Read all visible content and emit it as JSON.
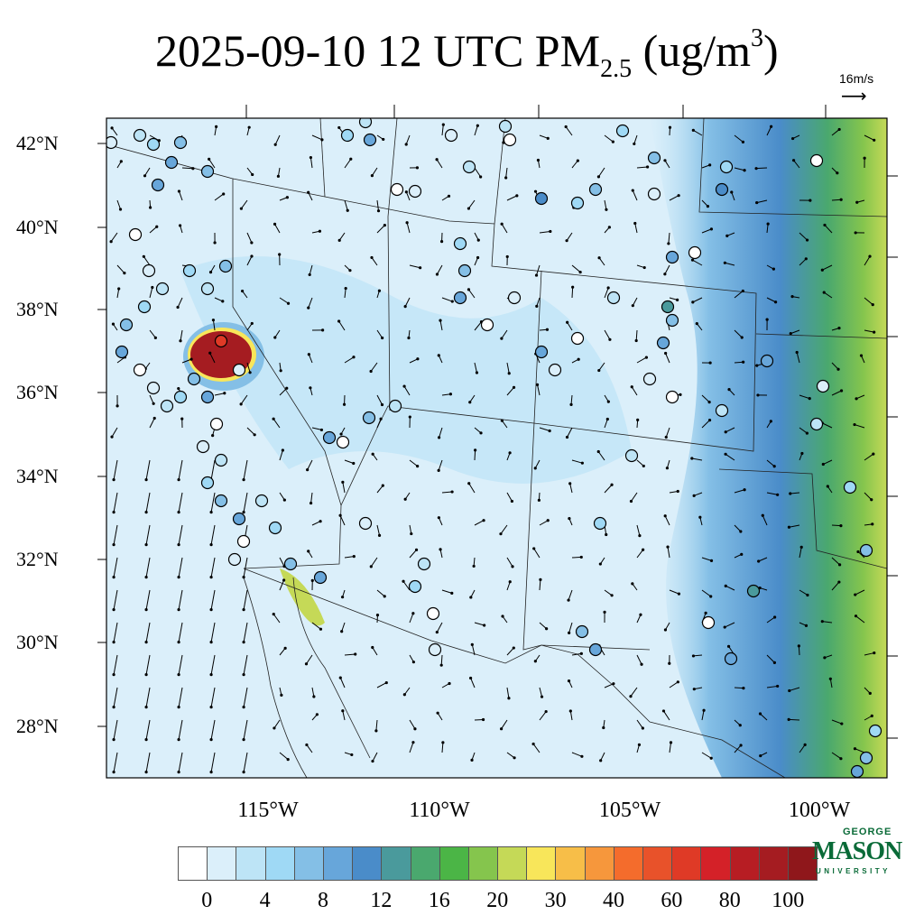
{
  "title": {
    "prefix": "2025-09-10 12 UTC PM",
    "sub": "2.5",
    "units_open": " (ug/m",
    "sup": "3",
    "units_close": ")"
  },
  "reference_vector": {
    "label": "16m/s",
    "arrow": "⟶"
  },
  "map": {
    "lat_labels": [
      "42°N",
      "40°N",
      "38°N",
      "36°N",
      "34°N",
      "32°N",
      "30°N",
      "28°N"
    ],
    "lon_labels": [
      "115°W",
      "110°W",
      "105°W",
      "100°W"
    ],
    "background_color": "#dbeffa"
  },
  "colorbar": {
    "colors": [
      "#ffffff",
      "#dbeffa",
      "#bde4f6",
      "#9fd9f5",
      "#84bfe6",
      "#67a6da",
      "#4a8cc9",
      "#4a9a9c",
      "#4aa86e",
      "#4bb546",
      "#85c54d",
      "#c5d957",
      "#f8e65a",
      "#f7be48",
      "#f6973c",
      "#f46c2c",
      "#e8522a",
      "#df3a26",
      "#d42128",
      "#b71d23",
      "#a51c21",
      "#8f171b"
    ],
    "labels": [
      "0",
      "4",
      "8",
      "12",
      "16",
      "20",
      "30",
      "40",
      "60",
      "80",
      "100"
    ]
  },
  "logo": {
    "top": "GEORGE",
    "main": "MASON",
    "bottom": "UNIVERSITY"
  }
}
